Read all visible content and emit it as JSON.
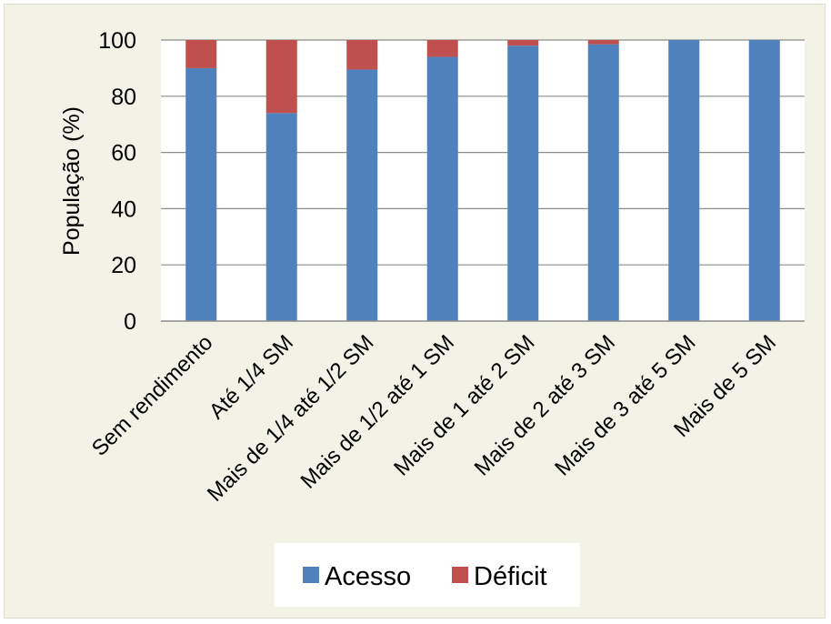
{
  "chart_data": {
    "type": "bar",
    "stacked": true,
    "title": "",
    "xlabel": "",
    "ylabel": "População  (%)",
    "ylim": [
      0,
      100
    ],
    "yticks": [
      "0",
      "20",
      "40",
      "60",
      "80",
      "100"
    ],
    "grid": true,
    "legend_position": "bottom",
    "categories": [
      "Sem rendimento",
      "Até 1/4 SM",
      "Mais de 1/4 até 1/2 SM",
      "Mais de 1/2 até 1 SM",
      "Mais de 1 até 2 SM",
      "Mais de 2 até 3 SM",
      "Mais de 3 até 5 SM",
      "Mais de 5 SM"
    ],
    "series": [
      {
        "name": "Acesso",
        "color": "#4f81bd",
        "values": [
          90,
          74,
          89.5,
          94,
          98,
          98.5,
          100,
          100
        ]
      },
      {
        "name": "Déficit",
        "color": "#c0504d",
        "values": [
          10,
          26,
          10.5,
          6,
          2,
          1.5,
          0,
          0
        ]
      }
    ]
  }
}
